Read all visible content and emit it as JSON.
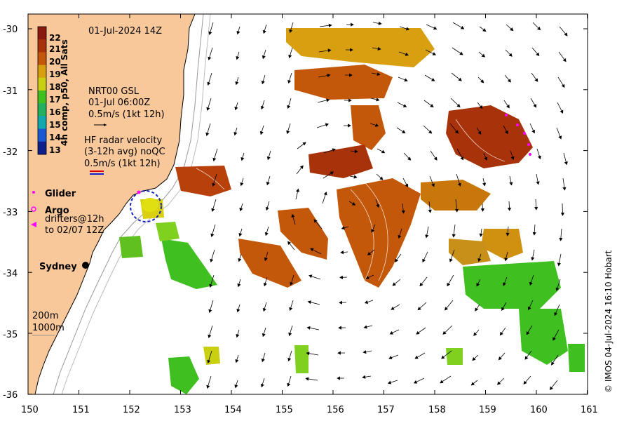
{
  "map": {
    "date_label": "01-Jul-2024 14Z",
    "colorbar": {
      "title": "4h comp, p50, All Sats",
      "ticks": [
        "22",
        "21",
        "20",
        "19",
        "18",
        "17",
        "16",
        "15",
        "14",
        "13"
      ],
      "colors": [
        "#8b1a0e",
        "#a8320a",
        "#c4580a",
        "#d8a010",
        "#c8d010",
        "#40c020",
        "#20b060",
        "#10a8b0",
        "#1858d0",
        "#10208a"
      ]
    },
    "gsl": {
      "line1": "NRT00 GSL",
      "line2": "01-Jul 06:00Z",
      "line3": "0.5m/s (1kt 12h)"
    },
    "hf": {
      "line1": "HF radar velocity",
      "line2": "(3-12h avg) noQC",
      "line3": "0.5m/s (1kt 12h)"
    },
    "legend": {
      "glider": "Glider",
      "argo": "Argo",
      "drifters1": "drifters@12h",
      "drifters2": "to 02/07 12Z"
    },
    "sydney": "Sydney",
    "contours": {
      "c200": "200m",
      "c1000": "1000m"
    },
    "credit": "© IMOS 04-Jul-2024 16:10 Hobart",
    "y_ticks": [
      "-30",
      "-31",
      "-32",
      "-33",
      "-34",
      "-35",
      "-36"
    ],
    "x_ticks": [
      "150",
      "151",
      "152",
      "153",
      "154",
      "155",
      "156",
      "157",
      "158",
      "159",
      "160",
      "161"
    ],
    "colors": {
      "land": "#f8c89a",
      "coast": "#000000",
      "sst_warm": "#c4580a",
      "sst_cool": "#40c020"
    }
  }
}
